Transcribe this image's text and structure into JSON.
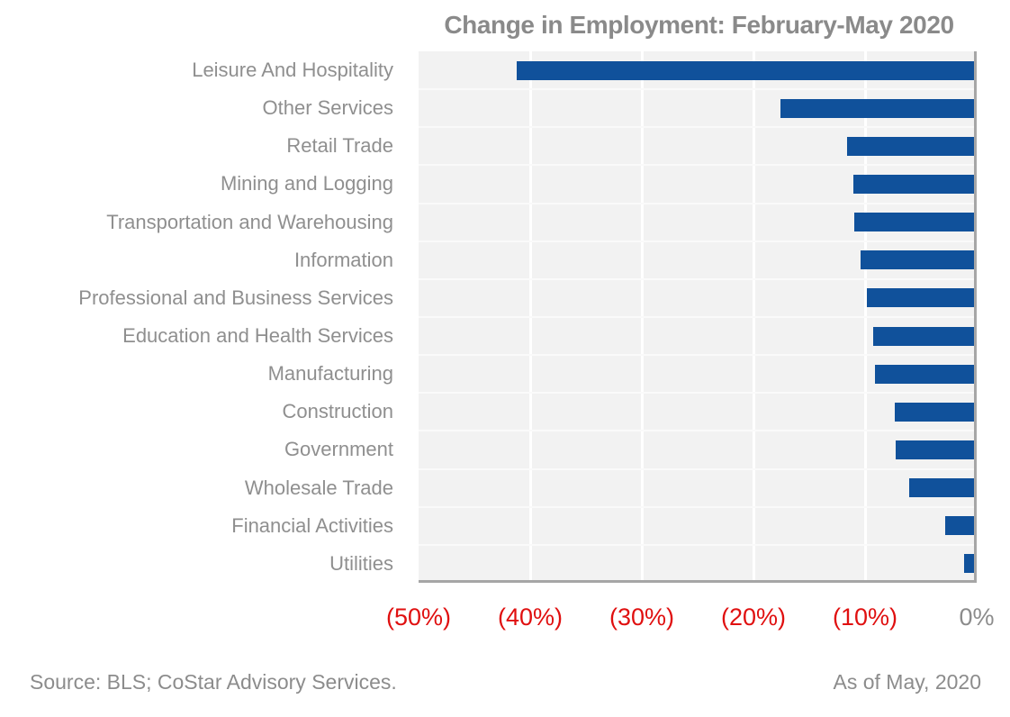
{
  "chart_data": {
    "type": "bar",
    "orientation": "horizontal",
    "title": "Change in Employment: February-May 2020",
    "categories": [
      "Leisure And Hospitality",
      "Other Services",
      "Retail Trade",
      "Mining and Logging",
      "Transportation and Warehousing",
      "Information",
      "Professional and Business Services",
      "Education and Health Services",
      "Manufacturing",
      "Construction",
      "Government",
      "Wholesale Trade",
      "Financial Activities",
      "Utilities"
    ],
    "values": [
      -41.0,
      -17.3,
      -11.4,
      -10.8,
      -10.7,
      -10.2,
      -9.6,
      -9.0,
      -8.9,
      -7.1,
      -7.0,
      -5.8,
      -2.6,
      -0.9
    ],
    "unit": "percent",
    "xlim": [
      -50,
      0
    ],
    "x_ticks": [
      {
        "value": -50,
        "label": "(50%)"
      },
      {
        "value": -40,
        "label": "(40%)"
      },
      {
        "value": -30,
        "label": "(30%)"
      },
      {
        "value": -20,
        "label": "(20%)"
      },
      {
        "value": -10,
        "label": "(10%)"
      },
      {
        "value": 0,
        "label": "0%"
      }
    ],
    "grid": true,
    "legend": false,
    "colors": {
      "bar": "#10519b",
      "negative_tick_label": "#e01010",
      "zero_tick_label": "#8c8c8c",
      "plot_background": "#f2f2f2",
      "gridline": "#ffffff",
      "axis_line": "#a6a6a6",
      "title_text": "#8a8a8a",
      "category_text": "#8f8f8f"
    }
  },
  "footer": {
    "source": "Source: BLS; CoStar Advisory Services.",
    "as_of": "As of May, 2020"
  }
}
